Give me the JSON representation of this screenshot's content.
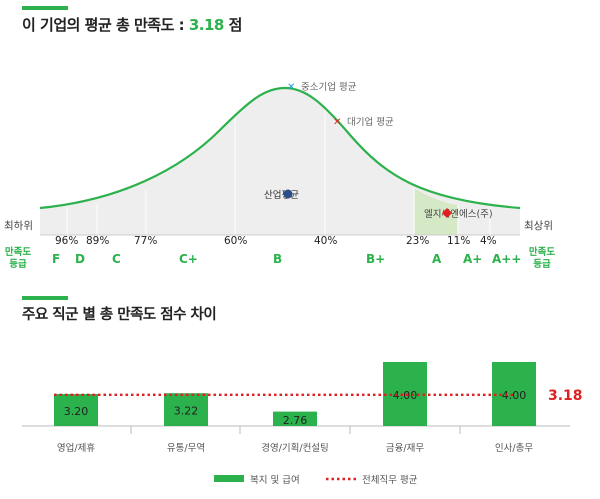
{
  "section1": {
    "title_prefix": "이 기업의 평균 총 만족도 : ",
    "score": "3.18",
    "title_suffix": " 점"
  },
  "curve": {
    "left_label": "최하위",
    "right_label": "최상위",
    "markers": {
      "sme_avg": "중소기업 평균",
      "large_avg": "대기업 평균",
      "industry_avg": "산업평균",
      "company": "엘지씨엔에스(주)"
    },
    "percentiles": [
      "96%",
      "89%",
      "77%",
      "60%",
      "40%",
      "23%",
      "11%",
      "4%"
    ],
    "grade_label_left": "만족도\n등급",
    "grade_label_right": "만족도\n등급",
    "grades": [
      "F",
      "D",
      "C",
      "C+",
      "B",
      "B+",
      "A",
      "A+",
      "A++"
    ]
  },
  "section2": {
    "title": "주요 직군 별 총 만족도 점수 차이"
  },
  "colors": {
    "accent": "#2bb24c",
    "bar": "#2bb24c",
    "overall_line": "#e02020",
    "sme_marker": "#2a9fd8",
    "large_marker": "#e02020",
    "curve_fill": "#eeeeee",
    "highlight_fill": "#d5e9c6"
  },
  "chart_data": {
    "type": "bar",
    "categories": [
      "영업/제휴",
      "유통/무역",
      "경영/기획/컨설팅",
      "금융/재무",
      "인사/총무"
    ],
    "series": [
      {
        "name": "복지 및 급여",
        "values": [
          3.2,
          3.22,
          2.76,
          4.0,
          4.0
        ]
      }
    ],
    "reference_line": {
      "name": "전체직무 평균",
      "value": 3.18,
      "label": "3.18"
    },
    "ylim": [
      0,
      4.2
    ],
    "legend": "bottom-center",
    "grid": false
  }
}
